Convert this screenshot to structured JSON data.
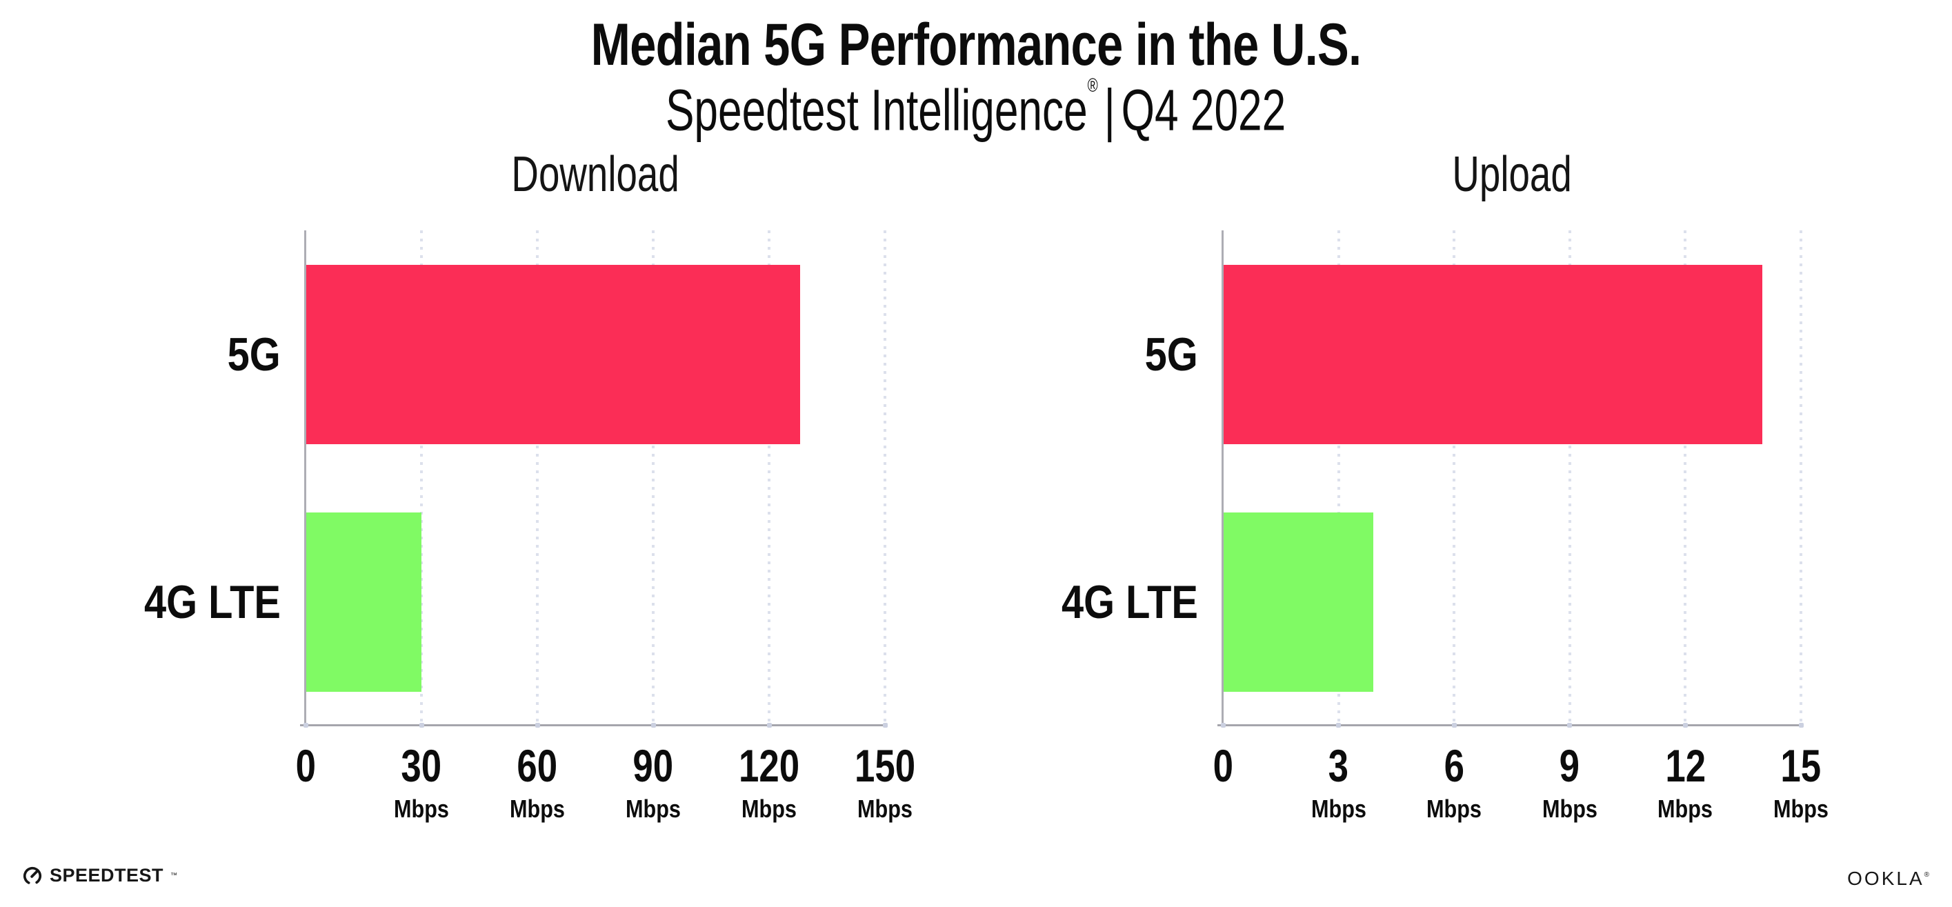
{
  "header": {
    "title": "Median 5G Performance in the U.S.",
    "subtitle_brand": "Speedtest Intelligence",
    "reg_mark": "®",
    "subtitle_separator": "|",
    "subtitle_period": "Q4 2022"
  },
  "colors": {
    "bar_5g_pink": "#FB2D56",
    "bar_4g_green": "#80FA64",
    "gridline_dotted": "#DCE0EC",
    "axis_line": "#A5A5AC",
    "text": "#0C0C0C",
    "background": "#FFFFFF"
  },
  "chart_data": [
    {
      "type": "bar",
      "orientation": "horizontal",
      "title": "Download",
      "categories": [
        "5G",
        "4G LTE"
      ],
      "values": [
        128,
        30
      ],
      "value_unit": "Mbps",
      "xlim": [
        0,
        150
      ],
      "xticks": [
        0,
        30,
        60,
        90,
        120,
        150
      ],
      "xtick_unit": "Mbps",
      "bar_colors": [
        "#FB2D56",
        "#80FA64"
      ],
      "grid": "vertical dotted gridlines at major ticks",
      "legend": "none"
    },
    {
      "type": "bar",
      "orientation": "horizontal",
      "title": "Upload",
      "categories": [
        "5G",
        "4G LTE"
      ],
      "values": [
        14,
        3.9
      ],
      "value_unit": "Mbps",
      "xlim": [
        0,
        15
      ],
      "xticks": [
        0,
        3,
        6,
        9,
        12,
        15
      ],
      "xtick_unit": "Mbps",
      "bar_colors": [
        "#FB2D56",
        "#80FA64"
      ],
      "grid": "vertical dotted gridlines at major ticks",
      "legend": "none"
    }
  ],
  "footer": {
    "speedtest_label": "SPEEDTEST",
    "tm_mark": "™",
    "ookla_label": "OOKLA",
    "reg_mark": "®",
    "speedtest_icon": "gauge-icon",
    "ookla_icon": "ookla-wordmark"
  }
}
